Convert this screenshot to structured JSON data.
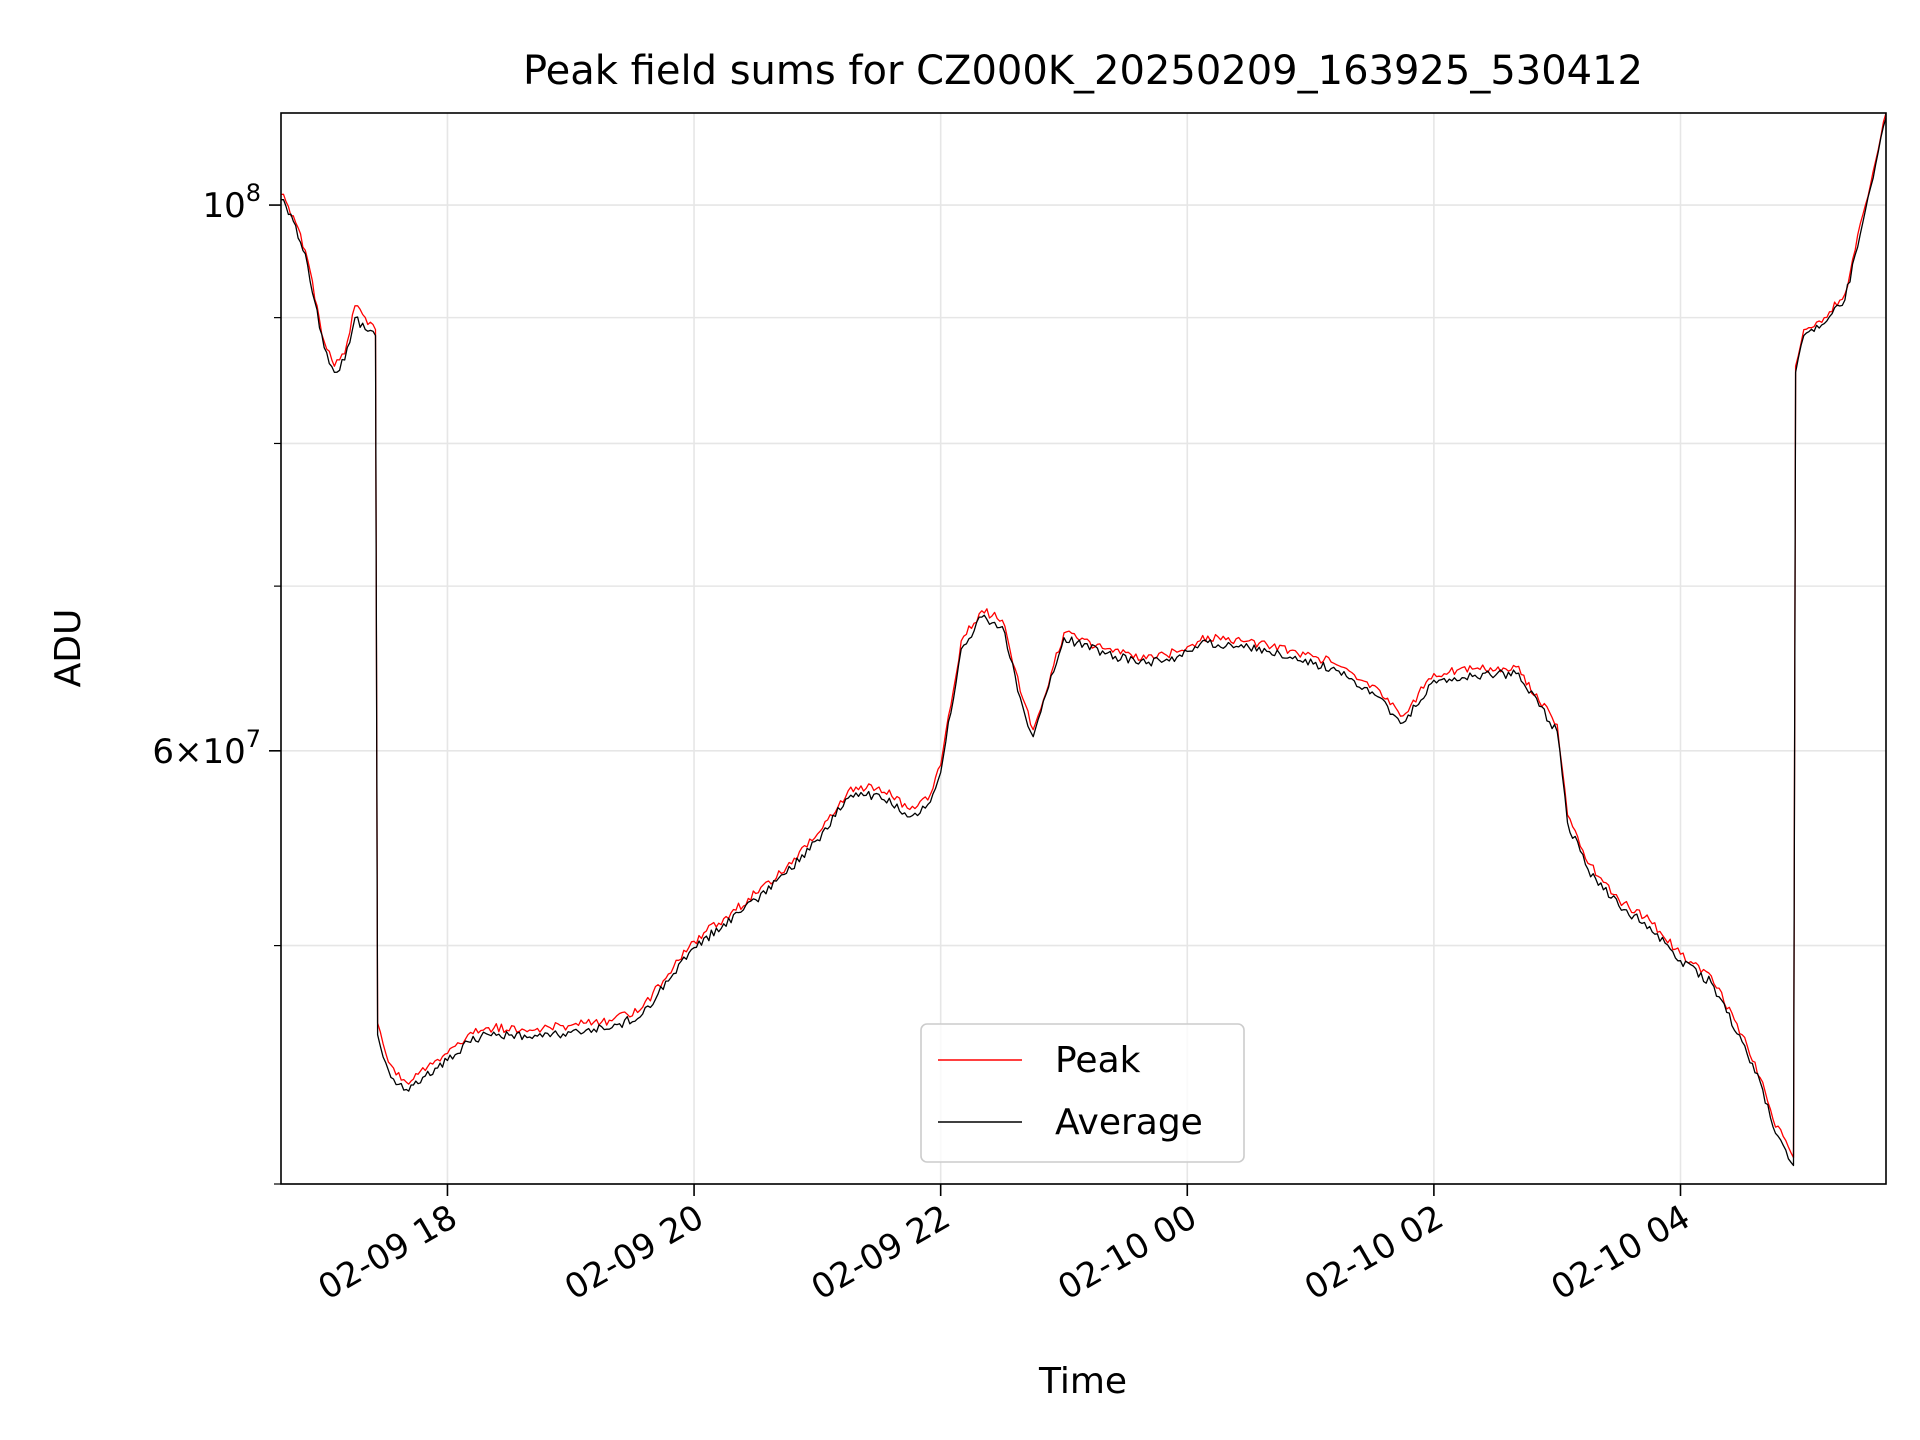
{
  "chart_data": {
    "type": "line",
    "title": "Peak field sums for CZ000K_20250209_163925_530412",
    "xlabel": "Time",
    "ylabel": "ADU",
    "x_unit": "datetime",
    "xlim": [
      "2025-02-09 16:39",
      "2025-02-10 05:40"
    ],
    "ylim": [
      40000000,
      109000000
    ],
    "yscale": "log",
    "grid": true,
    "legend_location": "lower center",
    "x_ticks": [
      {
        "value": "2025-02-09 18:00",
        "label": "02-09 18"
      },
      {
        "value": "2025-02-09 20:00",
        "label": "02-09 20"
      },
      {
        "value": "2025-02-09 22:00",
        "label": "02-09 22"
      },
      {
        "value": "2025-02-10 00:00",
        "label": "02-10 00"
      },
      {
        "value": "2025-02-10 02:00",
        "label": "02-10 02"
      },
      {
        "value": "2025-02-10 04:00",
        "label": "02-10 04"
      }
    ],
    "y_ticks_major": [
      {
        "value": 100000000,
        "base": "10",
        "exp": "8",
        "mantissa": ""
      },
      {
        "value": 60000000,
        "base": "10",
        "exp": "7",
        "mantissa": "6"
      }
    ],
    "y_ticks_minor": [
      40000000,
      50000000,
      70000000,
      80000000,
      90000000
    ],
    "series": [
      {
        "name": "Peak",
        "color": "#ff0000",
        "x": [
          "2025-02-09 16:39",
          "2025-02-09 16:45",
          "2025-02-09 16:52",
          "2025-02-09 17:00",
          "2025-02-09 17:05",
          "2025-02-09 17:10",
          "2025-02-09 17:15",
          "2025-02-09 17:20",
          "2025-02-09 17:25",
          "2025-02-09 17:26",
          "2025-02-09 17:30",
          "2025-02-09 17:35",
          "2025-02-09 17:40",
          "2025-02-09 17:48",
          "2025-02-09 18:00",
          "2025-02-09 18:10",
          "2025-02-09 18:20",
          "2025-02-09 18:40",
          "2025-02-09 19:00",
          "2025-02-09 19:20",
          "2025-02-09 19:35",
          "2025-02-09 19:50",
          "2025-02-09 20:00",
          "2025-02-09 20:30",
          "2025-02-09 20:45",
          "2025-02-09 21:00",
          "2025-02-09 21:15",
          "2025-02-09 21:30",
          "2025-02-09 21:45",
          "2025-02-09 21:55",
          "2025-02-09 22:00",
          "2025-02-09 22:10",
          "2025-02-09 22:20",
          "2025-02-09 22:30",
          "2025-02-09 22:40",
          "2025-02-09 22:45",
          "2025-02-09 22:55",
          "2025-02-09 23:00",
          "2025-02-09 23:20",
          "2025-02-09 23:40",
          "2025-02-09 23:55",
          "2025-02-10 00:10",
          "2025-02-10 00:30",
          "2025-02-10 00:50",
          "2025-02-10 01:10",
          "2025-02-10 01:30",
          "2025-02-10 01:45",
          "2025-02-10 02:00",
          "2025-02-10 02:20",
          "2025-02-10 02:40",
          "2025-02-10 03:00",
          "2025-02-10 03:05",
          "2025-02-10 03:15",
          "2025-02-10 03:30",
          "2025-02-10 03:45",
          "2025-02-10 04:00",
          "2025-02-10 04:15",
          "2025-02-10 04:30",
          "2025-02-10 04:40",
          "2025-02-10 04:45",
          "2025-02-10 04:55",
          "2025-02-10 04:56",
          "2025-02-10 05:00",
          "2025-02-10 05:10",
          "2025-02-10 05:20",
          "2025-02-10 05:30",
          "2025-02-10 05:40"
        ],
        "y": [
          101000000,
          99000000,
          95000000,
          88000000,
          86000000,
          87000000,
          91000000,
          90000000,
          89000000,
          46500000,
          45200000,
          44300000,
          44000000,
          44600000,
          45200000,
          46000000,
          46300000,
          46200000,
          46400000,
          46600000,
          47200000,
          49000000,
          50200000,
          52500000,
          53800000,
          55500000,
          57800000,
          58000000,
          56800000,
          57600000,
          59200000,
          66500000,
          68400000,
          67800000,
          63000000,
          61200000,
          65000000,
          67000000,
          66000000,
          65400000,
          65800000,
          66800000,
          66500000,
          65900000,
          65200000,
          63800000,
          62000000,
          64500000,
          64800000,
          64900000,
          61500000,
          56500000,
          54000000,
          52200000,
          51200000,
          49600000,
          48600000,
          46000000,
          44000000,
          42500000,
          41000000,
          86000000,
          89000000,
          90000000,
          92000000,
          100000000,
          109000000
        ]
      },
      {
        "name": "Average",
        "color": "#000000",
        "x": [
          "2025-02-09 16:39",
          "2025-02-09 16:45",
          "2025-02-09 16:52",
          "2025-02-09 17:00",
          "2025-02-09 17:05",
          "2025-02-09 17:10",
          "2025-02-09 17:15",
          "2025-02-09 17:20",
          "2025-02-09 17:25",
          "2025-02-09 17:26",
          "2025-02-09 17:30",
          "2025-02-09 17:35",
          "2025-02-09 17:40",
          "2025-02-09 17:48",
          "2025-02-09 18:00",
          "2025-02-09 18:10",
          "2025-02-09 18:20",
          "2025-02-09 18:40",
          "2025-02-09 19:00",
          "2025-02-09 19:20",
          "2025-02-09 19:35",
          "2025-02-09 19:50",
          "2025-02-09 20:00",
          "2025-02-09 20:30",
          "2025-02-09 20:45",
          "2025-02-09 21:00",
          "2025-02-09 21:15",
          "2025-02-09 21:30",
          "2025-02-09 21:45",
          "2025-02-09 21:55",
          "2025-02-09 22:00",
          "2025-02-09 22:10",
          "2025-02-09 22:20",
          "2025-02-09 22:30",
          "2025-02-09 22:40",
          "2025-02-09 22:45",
          "2025-02-09 22:55",
          "2025-02-09 23:00",
          "2025-02-09 23:20",
          "2025-02-09 23:40",
          "2025-02-09 23:55",
          "2025-02-10 00:10",
          "2025-02-10 00:30",
          "2025-02-10 00:50",
          "2025-02-10 01:10",
          "2025-02-10 01:30",
          "2025-02-10 01:45",
          "2025-02-10 02:00",
          "2025-02-10 02:20",
          "2025-02-10 02:40",
          "2025-02-10 03:00",
          "2025-02-10 03:05",
          "2025-02-10 03:15",
          "2025-02-10 03:30",
          "2025-02-10 03:45",
          "2025-02-10 04:00",
          "2025-02-10 04:15",
          "2025-02-10 04:30",
          "2025-02-10 04:40",
          "2025-02-10 04:45",
          "2025-02-10 04:55",
          "2025-02-10 04:56",
          "2025-02-10 05:00",
          "2025-02-10 05:10",
          "2025-02-10 05:20",
          "2025-02-10 05:30",
          "2025-02-10 05:40"
        ],
        "y": [
          100500000,
          98500000,
          94500000,
          87500000,
          85500000,
          86500000,
          90000000,
          89000000,
          88500000,
          46000000,
          44800000,
          43900000,
          43700000,
          44200000,
          44900000,
          45700000,
          46000000,
          45900000,
          46100000,
          46300000,
          46900000,
          48700000,
          49900000,
          52200000,
          53500000,
          55200000,
          57400000,
          57600000,
          56400000,
          57200000,
          58800000,
          66000000,
          68000000,
          67400000,
          62500000,
          60800000,
          64600000,
          66700000,
          65700000,
          65100000,
          65500000,
          66400000,
          66100000,
          65500000,
          64800000,
          63400000,
          61600000,
          64100000,
          64400000,
          64500000,
          61100000,
          56100000,
          53700000,
          51900000,
          50900000,
          49300000,
          48300000,
          45700000,
          43700000,
          42200000,
          40700000,
          85500000,
          88500000,
          89500000,
          91500000,
          99500000,
          108500000
        ]
      }
    ]
  }
}
